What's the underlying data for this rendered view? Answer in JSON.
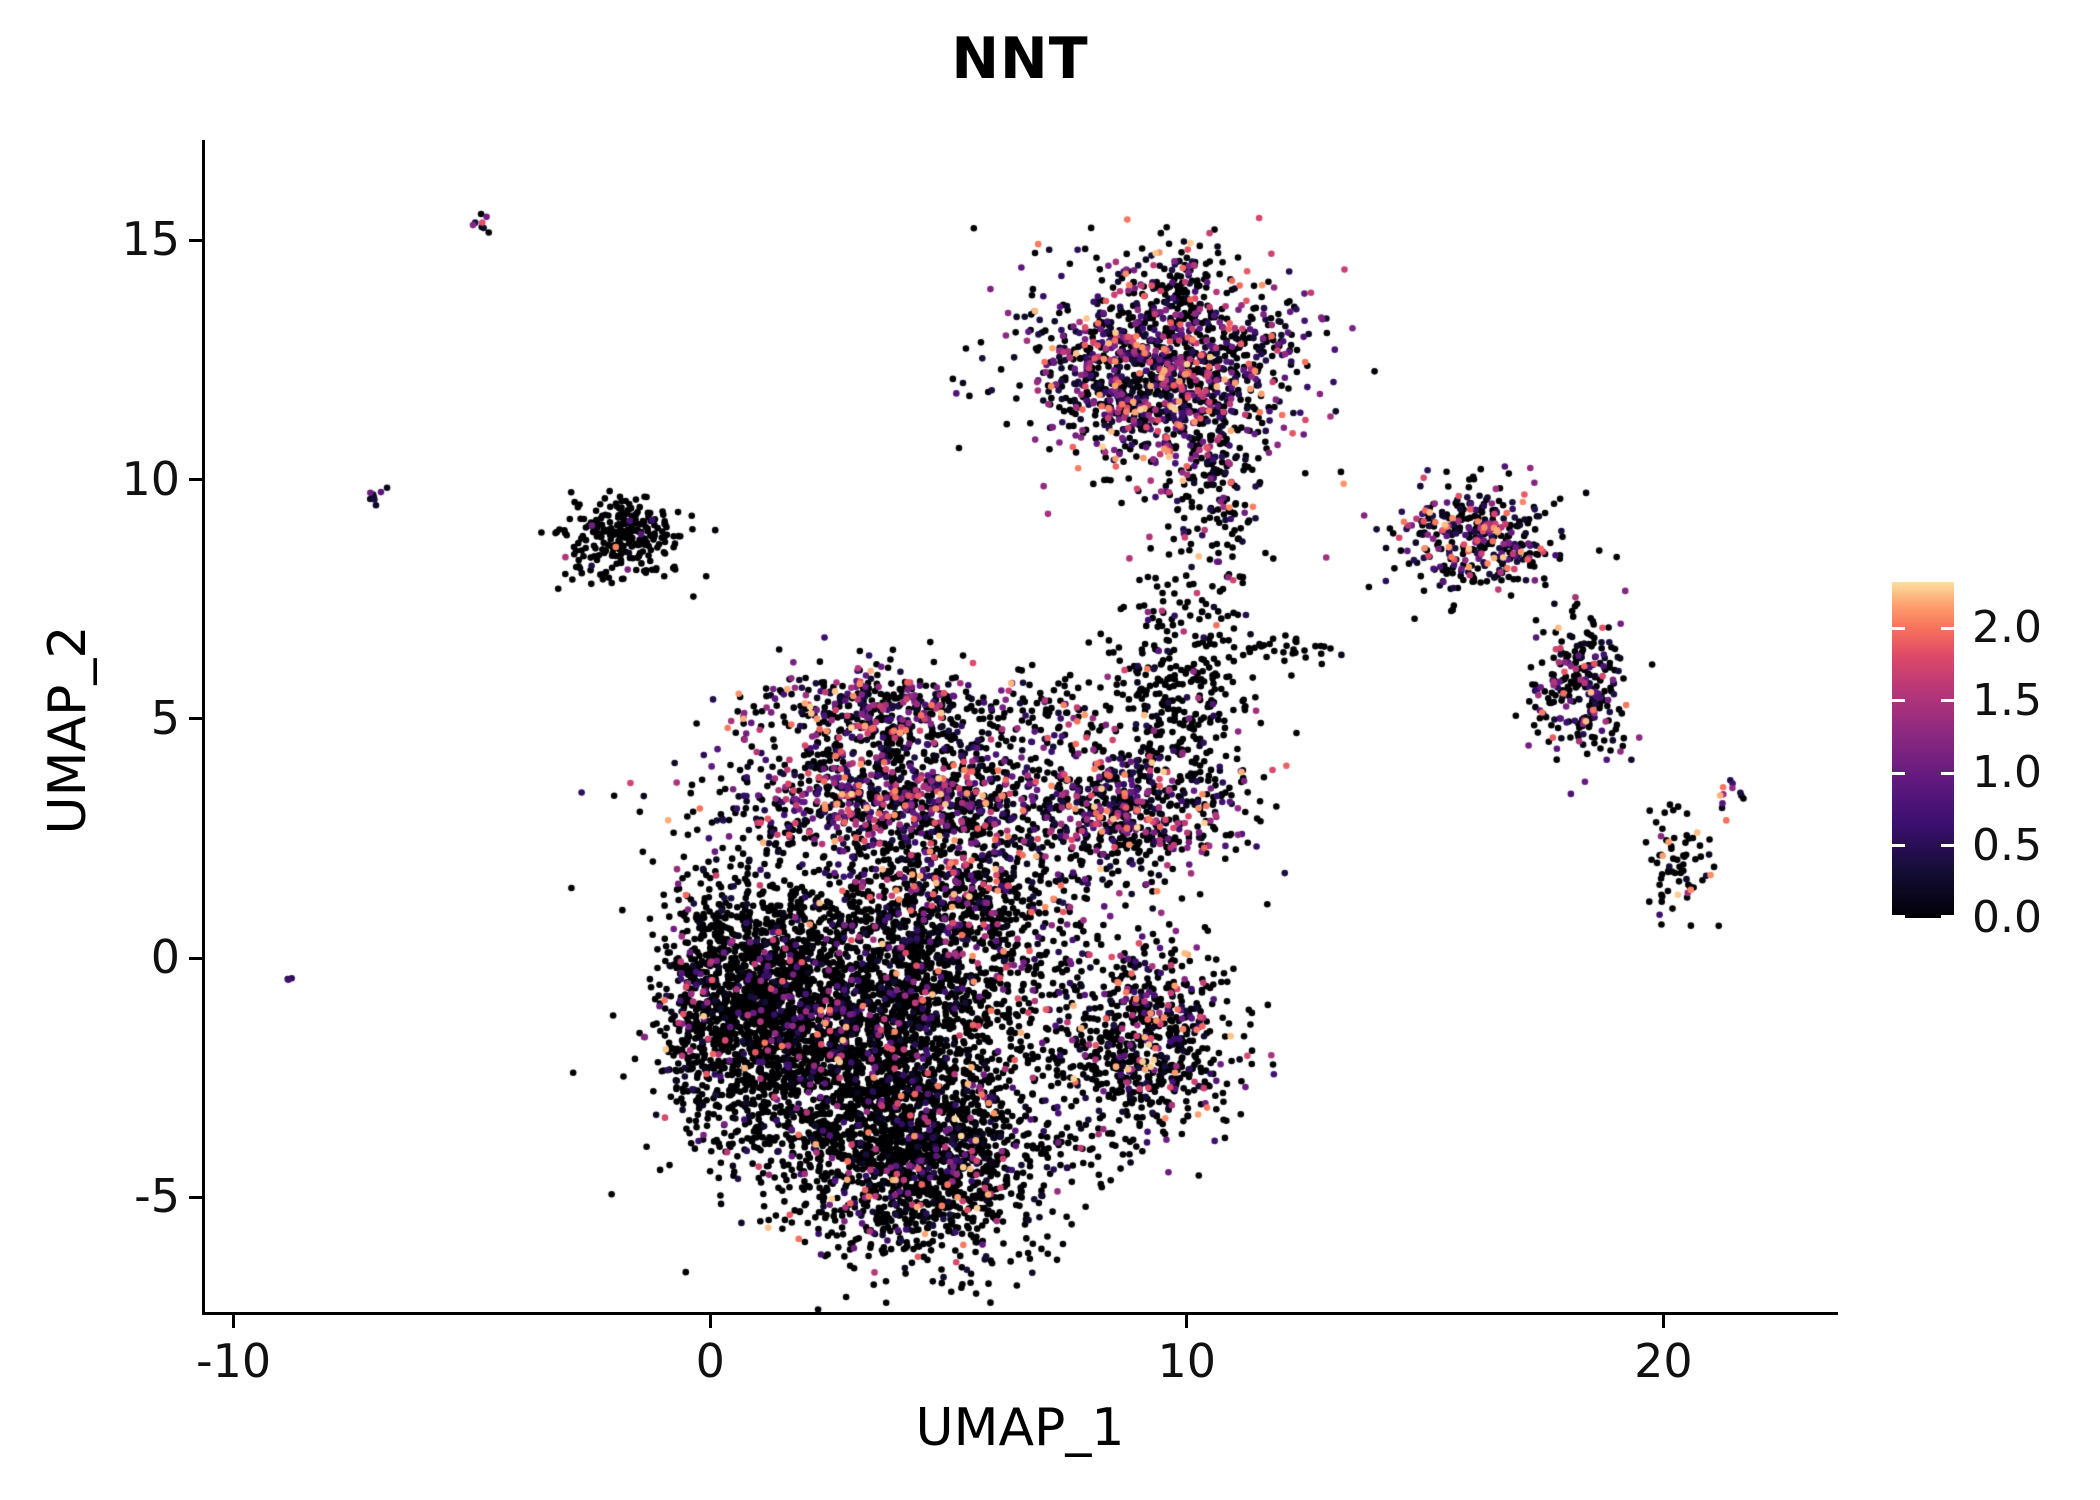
{
  "figure": {
    "background": "#ffffff"
  },
  "chart_data": {
    "type": "scatter",
    "title": "NNT",
    "subtitle": "",
    "xlabel": "UMAP_1",
    "ylabel": "UMAP_2",
    "xlim": [
      -10.6,
      23.6
    ],
    "ylim": [
      -7.4,
      17.1
    ],
    "grid": false,
    "legend_position": "right",
    "x_ticks": [
      {
        "v": -10,
        "label": "-10"
      },
      {
        "v": 0,
        "label": "0"
      },
      {
        "v": 10,
        "label": "10"
      },
      {
        "v": 20,
        "label": "20"
      }
    ],
    "y_ticks": [
      {
        "v": -5,
        "label": "-5"
      },
      {
        "v": 0,
        "label": "0"
      },
      {
        "v": 5,
        "label": "5"
      },
      {
        "v": 10,
        "label": "10"
      },
      {
        "v": 15,
        "label": "15"
      }
    ],
    "colorbar": {
      "vmin": 0.0,
      "vmax": 2.32,
      "ticks": [
        {
          "v": 2.0,
          "label": "2.0"
        },
        {
          "v": 1.5,
          "label": "1.5"
        },
        {
          "v": 1.0,
          "label": "1.0"
        },
        {
          "v": 0.5,
          "label": "0.5"
        },
        {
          "v": 0.0,
          "label": "0.0"
        }
      ]
    },
    "colormap": {
      "name": "magma",
      "stops": [
        [
          0.0,
          "#000004"
        ],
        [
          0.14,
          "#140e36"
        ],
        [
          0.28,
          "#3b0f70"
        ],
        [
          0.42,
          "#641a80"
        ],
        [
          0.55,
          "#8c2981"
        ],
        [
          0.68,
          "#b73779"
        ],
        [
          0.78,
          "#de4968"
        ],
        [
          0.86,
          "#f7705c"
        ],
        [
          0.93,
          "#fe9f6d"
        ],
        [
          1.0,
          "#fddea0"
        ]
      ]
    },
    "point_radius": 3.3,
    "seed": 1337,
    "clusters": [
      {
        "name": "central-left-lobe",
        "cx": 0.9,
        "cy": -0.9,
        "sx": 0.95,
        "sy": 1.35,
        "n": 1500,
        "expr_frac": 0.1,
        "bright": 0.35
      },
      {
        "name": "central-left-edge",
        "cx": -0.35,
        "cy": -1.3,
        "sx": 0.22,
        "sy": 1.4,
        "n": 90,
        "expr_frac": 0.45,
        "bright": 0.55
      },
      {
        "name": "central-core",
        "cx": 3.6,
        "cy": -1.6,
        "sx": 1.55,
        "sy": 1.5,
        "n": 2300,
        "expr_frac": 0.13,
        "bright": 0.4
      },
      {
        "name": "central-bottom",
        "cx": 4.4,
        "cy": -4.4,
        "sx": 1.35,
        "sy": 0.95,
        "n": 1300,
        "expr_frac": 0.16,
        "bright": 0.45
      },
      {
        "name": "central-upper",
        "cx": 5.2,
        "cy": 1.1,
        "sx": 1.5,
        "sy": 1.0,
        "n": 900,
        "expr_frac": 0.28,
        "bright": 0.45
      },
      {
        "name": "central-right-lobe",
        "cx": 9.1,
        "cy": -1.7,
        "sx": 1.0,
        "sy": 1.1,
        "n": 750,
        "expr_frac": 0.28,
        "bright": 0.5
      },
      {
        "name": "band-y3",
        "cx": 4.1,
        "cy": 3.2,
        "sx": 1.9,
        "sy": 0.5,
        "n": 750,
        "expr_frac": 0.55,
        "bright": 0.6
      },
      {
        "name": "upper-mid",
        "cx": 3.8,
        "cy": 4.6,
        "sx": 1.5,
        "sy": 0.75,
        "n": 550,
        "expr_frac": 0.35,
        "bright": 0.5
      },
      {
        "name": "upper-mid-rim",
        "cx": 3.2,
        "cy": 5.35,
        "sx": 1.1,
        "sy": 0.28,
        "n": 160,
        "expr_frac": 0.6,
        "bright": 0.6
      },
      {
        "name": "mid-right",
        "cx": 8.8,
        "cy": 3.1,
        "sx": 1.15,
        "sy": 0.75,
        "n": 550,
        "expr_frac": 0.5,
        "bright": 0.55
      },
      {
        "name": "finger",
        "cx": 9.7,
        "cy": 5.3,
        "sx": 0.75,
        "sy": 1.0,
        "n": 320,
        "expr_frac": 0.12,
        "bright": 0.4
      },
      {
        "name": "bridge-7-5",
        "cx": 7.3,
        "cy": 5.0,
        "sx": 0.5,
        "sy": 0.5,
        "n": 60,
        "expr_frac": 0.25,
        "bright": 0.45
      },
      {
        "name": "top-main",
        "cx": 9.5,
        "cy": 12.3,
        "sx": 1.35,
        "sy": 1.05,
        "n": 1400,
        "expr_frac": 0.5,
        "bright": 0.55
      },
      {
        "name": "top-main-tail",
        "cx": 10.55,
        "cy": 9.9,
        "sx": 0.5,
        "sy": 0.9,
        "n": 160,
        "expr_frac": 0.4,
        "bright": 0.5
      },
      {
        "name": "top-main-spike",
        "cx": 9.9,
        "cy": 14.2,
        "sx": 0.25,
        "sy": 0.4,
        "n": 45,
        "expr_frac": 0.45,
        "bright": 0.5
      },
      {
        "name": "topleft-black",
        "cx": -1.85,
        "cy": 8.8,
        "sx": 0.6,
        "sy": 0.42,
        "n": 260,
        "expr_frac": 0.05,
        "bright": 0.35
      },
      {
        "name": "right-upper",
        "cx": 16.1,
        "cy": 8.8,
        "sx": 0.8,
        "sy": 0.55,
        "n": 380,
        "expr_frac": 0.5,
        "bright": 0.55
      },
      {
        "name": "right-mid",
        "cx": 18.3,
        "cy": 5.7,
        "sx": 0.5,
        "sy": 0.8,
        "n": 260,
        "expr_frac": 0.35,
        "bright": 0.5
      },
      {
        "name": "right-small",
        "cx": 20.3,
        "cy": 1.9,
        "sx": 0.32,
        "sy": 0.6,
        "n": 70,
        "expr_frac": 0.3,
        "bright": 0.5
      },
      {
        "name": "right-tiny-pink",
        "cx": 21.4,
        "cy": 3.35,
        "sx": 0.18,
        "sy": 0.18,
        "n": 12,
        "expr_frac": 0.8,
        "bright": 0.7
      },
      {
        "name": "tiny-left-pink",
        "cx": -6.95,
        "cy": 9.65,
        "sx": 0.12,
        "sy": 0.15,
        "n": 8,
        "expr_frac": 0.6,
        "bright": 0.6
      },
      {
        "name": "tiny-topleft",
        "cx": -4.8,
        "cy": 15.4,
        "sx": 0.12,
        "sy": 0.12,
        "n": 8,
        "expr_frac": 0.6,
        "bright": 0.8
      },
      {
        "name": "lone-left",
        "cx": -8.75,
        "cy": -0.5,
        "sx": 0.07,
        "sy": 0.07,
        "n": 3,
        "expr_frac": 0.9,
        "bright": 0.6
      },
      {
        "name": "sparse-bridge",
        "cx": 12.3,
        "cy": 6.45,
        "sx": 0.55,
        "sy": 0.15,
        "n": 28,
        "expr_frac": 0.1,
        "bright": 0.35
      },
      {
        "name": "sparse-between",
        "cx": 10.2,
        "cy": 7.6,
        "sx": 0.8,
        "sy": 0.8,
        "n": 50,
        "expr_frac": 0.2,
        "bright": 0.4
      }
    ]
  }
}
